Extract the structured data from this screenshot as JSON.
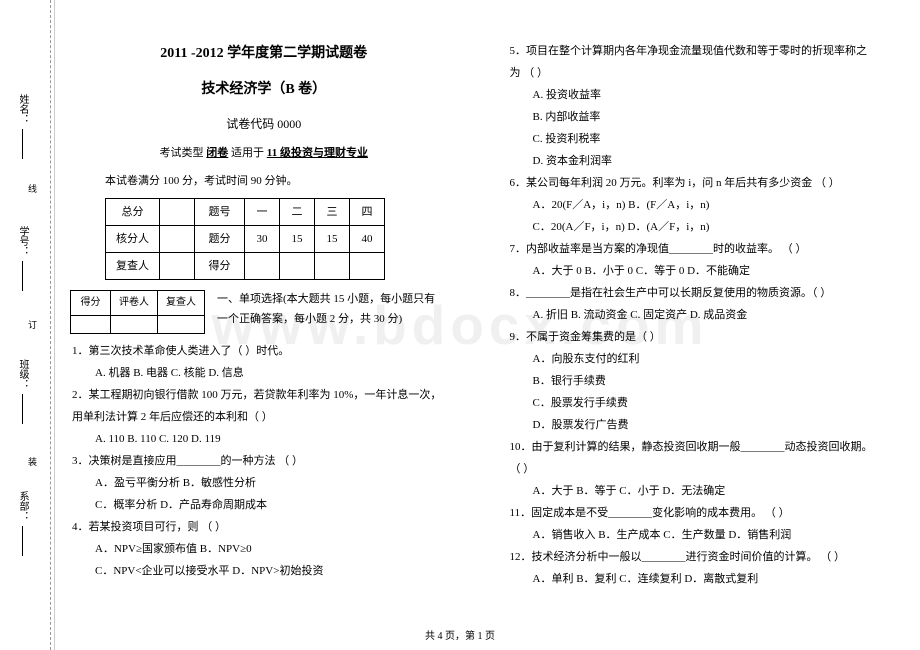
{
  "watermark": "www.bdocx.com",
  "binding": {
    "labels": [
      "姓名：",
      "学号：",
      "班级：",
      "系部："
    ],
    "marks": [
      "线",
      "订",
      "装"
    ]
  },
  "header": {
    "title1": "2011 -2012 学年度第二学期试题卷",
    "title2": "技术经济学（B 卷）",
    "code": "试卷代码 0000",
    "examtype_prefix": "考试类型 ",
    "examtype_closed": "闭卷",
    "examtype_mid": "  适用于 ",
    "examtype_major": "11 级投资与理财专业",
    "info": "本试卷满分 100 分，考试时间 90 分钟。"
  },
  "scoreTable": {
    "r1": [
      "总分",
      "",
      "题号",
      "一",
      "二",
      "三",
      "四"
    ],
    "r2": [
      "核分人",
      "",
      "题分",
      "30",
      "15",
      "15",
      "40"
    ],
    "r3": [
      "复查人",
      "",
      "得分",
      "",
      "",
      "",
      ""
    ]
  },
  "miniTable": [
    "得分",
    "评卷人",
    "复查人"
  ],
  "section1_desc1": "一、单项选择(本大题共 15 小题，每小题只有",
  "section1_desc2": "一个正确答案，每小题 2 分，共 30 分)",
  "leftQuestions": {
    "q1": "1．第三次技术革命使人类进入了（    ）时代。",
    "q1opts": "A. 机器  B. 电器  C. 核能  D. 信息",
    "q2a": "2．某工程期初向银行借款 100 万元，若贷款年利率为 10%，一年计息一次，",
    "q2b": "用单利法计算 2 年后应偿还的本利和（    ）",
    "q2opts": "A. 110        B. 110        C. 120        D. 119",
    "q3": "3．决策树是直接应用________的一种方法     （    ）",
    "q3opts1": "A．盈亏平衡分析        B．敏感性分析",
    "q3opts2": "C．概率分析            D．产品寿命周期成本",
    "q4": "4．若某投资项目可行，则    （    ）",
    "q4opts1": "A．NPV≥国家颁布值          B．NPV≥0",
    "q4opts2": "C．NPV<企业可以接受水平    D．NPV>初始投资"
  },
  "rightQuestions": {
    "q5a": "5．项目在整个计算期内各年净现金流量现值代数和等于零时的折现率称之",
    "q5b": "为    （    ）",
    "q5o1": "A. 投资收益率",
    "q5o2": "B. 内部收益率",
    "q5o3": "C. 投资利税率",
    "q5o4": "D. 资本金利润率",
    "q6": "6．某公司每年利润 20 万元。利率为 i，问 n 年后共有多少资金    （    ）",
    "q6o1": "A．20(F／A，i，n)                  B．(F／A，i，n)",
    "q6o2": "C．20(A／F，i，n)                  D．(A／F，i，n)",
    "q7": "7．内部收益率是当方案的净现值________时的收益率。    （    ）",
    "q7o": "A．大于 0      B．小于 0      C．等于 0      D．不能确定",
    "q8": "8．________是指在社会生产中可以长期反复使用的物质资源。（    ）",
    "q8o": "A. 折旧      B. 流动资金      C. 固定资产      D. 成品资金",
    "q9": "9．不属于资金筹集费的是（    ）",
    "q9o1": "A．向股东支付的红利",
    "q9o2": "B．银行手续费",
    "q9o3": "C．股票发行手续费",
    "q9o4": "D．股票发行广告费",
    "q10": "10．由于复利计算的结果，静态投资回收期一般________动态投资回收期。",
    "q10b": "（    ）",
    "q10o": "A．大于      B．等于      C．小于      D．无法确定",
    "q11": "11．固定成本是不受________变化影响的成本费用。    （    ）",
    "q11o": "A．销售收入    B．生产成本    C．生产数量    D．销售利润",
    "q12": "12．技术经济分析中一般以________进行资金时间价值的计算。    （    ）",
    "q12o": "A．单利      B．复利      C．连续复利      D．离散式复利"
  },
  "footer": "共 4 页，第 1 页"
}
